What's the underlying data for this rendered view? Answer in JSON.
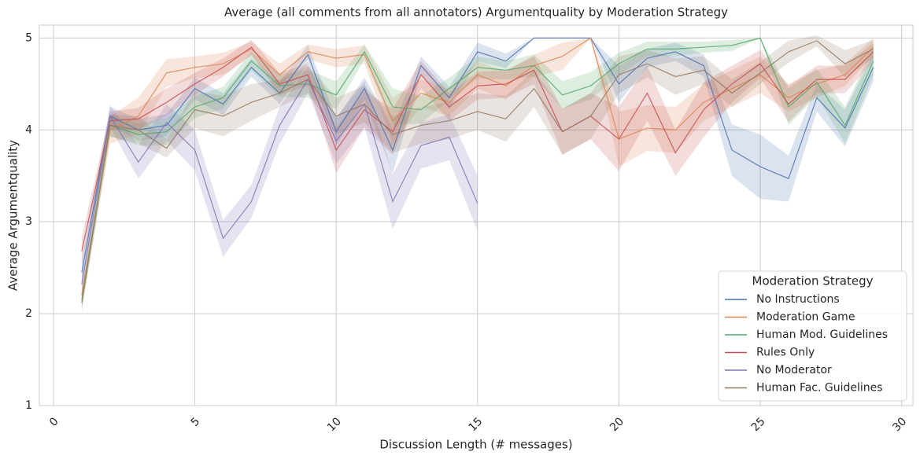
{
  "chart_data": {
    "type": "line",
    "title": "Average (all comments from all annotators) Argumentquality by Moderation Strategy",
    "x_label": "Discussion Length (# messages)",
    "y_label": "Average Argumentquality",
    "legend_title": "Moderation Strategy",
    "legend_position": "lower right",
    "grid": true,
    "x": [
      1,
      2,
      3,
      4,
      5,
      6,
      7,
      8,
      9,
      10,
      11,
      12,
      13,
      14,
      15,
      16,
      17,
      18,
      19,
      20,
      21,
      22,
      23,
      24,
      25,
      26,
      27,
      28,
      29
    ],
    "xlim": [
      -0.5,
      30.4
    ],
    "xticks": [
      0,
      5,
      10,
      15,
      20,
      25,
      30
    ],
    "ylim": [
      1,
      5.14
    ],
    "yticks": [
      1,
      2,
      3,
      4,
      5
    ],
    "series": [
      {
        "name": "No Instructions",
        "color": "#4c72b0",
        "values": [
          2.45,
          4.15,
          4.0,
          4.05,
          4.45,
          4.28,
          4.68,
          4.4,
          4.82,
          3.98,
          4.45,
          3.78,
          4.7,
          4.35,
          4.85,
          4.75,
          5.0,
          5.0,
          5.0,
          4.5,
          4.78,
          4.85,
          4.7,
          3.78,
          3.6,
          3.47,
          4.35,
          4.02,
          4.68
        ],
        "errors": [
          0.12,
          0.1,
          0.12,
          0.12,
          0.12,
          0.12,
          0.1,
          0.12,
          0.1,
          0.15,
          0.12,
          0.25,
          0.1,
          0.12,
          0.1,
          0.08,
          0.0,
          0.0,
          0.0,
          0.2,
          0.1,
          0.1,
          0.12,
          0.28,
          0.35,
          0.25,
          0.15,
          0.2,
          0.15
        ]
      },
      {
        "name": "Moderation Game",
        "color": "#dd8452",
        "values": [
          2.2,
          4.0,
          4.15,
          4.62,
          4.68,
          4.72,
          4.88,
          4.6,
          4.85,
          4.78,
          4.82,
          4.1,
          4.4,
          4.3,
          4.6,
          4.48,
          4.7,
          4.8,
          5.0,
          3.9,
          4.02,
          4.0,
          4.3,
          4.45,
          4.6,
          4.35,
          4.5,
          4.6,
          4.9
        ],
        "errors": [
          0.12,
          0.15,
          0.2,
          0.15,
          0.12,
          0.12,
          0.08,
          0.12,
          0.08,
          0.1,
          0.1,
          0.25,
          0.15,
          0.15,
          0.15,
          0.15,
          0.12,
          0.15,
          0.0,
          0.3,
          0.25,
          0.25,
          0.2,
          0.2,
          0.2,
          0.15,
          0.15,
          0.12,
          0.1
        ]
      },
      {
        "name": "Human Mod. Guidelines",
        "color": "#55a868",
        "values": [
          2.15,
          4.05,
          3.95,
          3.98,
          4.25,
          4.35,
          4.75,
          4.48,
          4.5,
          4.38,
          4.85,
          4.25,
          4.22,
          4.45,
          4.68,
          4.65,
          4.7,
          4.38,
          4.48,
          4.72,
          4.88,
          4.88,
          4.9,
          4.92,
          5.0,
          4.25,
          4.52,
          4.05,
          4.75
        ],
        "errors": [
          0.1,
          0.12,
          0.12,
          0.15,
          0.12,
          0.12,
          0.1,
          0.12,
          0.15,
          0.15,
          0.08,
          0.2,
          0.15,
          0.12,
          0.12,
          0.1,
          0.12,
          0.15,
          0.15,
          0.12,
          0.08,
          0.08,
          0.06,
          0.06,
          0.0,
          0.2,
          0.15,
          0.2,
          0.15
        ]
      },
      {
        "name": "Rules Only",
        "color": "#c44e52",
        "values": [
          2.68,
          4.1,
          4.12,
          4.3,
          4.5,
          4.68,
          4.9,
          4.5,
          4.6,
          3.78,
          4.22,
          3.98,
          4.6,
          4.25,
          4.48,
          4.5,
          4.65,
          3.98,
          4.15,
          3.9,
          4.4,
          3.75,
          4.22,
          4.5,
          4.72,
          4.28,
          4.55,
          4.55,
          4.85
        ],
        "errors": [
          0.15,
          0.1,
          0.12,
          0.15,
          0.12,
          0.1,
          0.08,
          0.12,
          0.12,
          0.25,
          0.2,
          0.25,
          0.15,
          0.15,
          0.15,
          0.15,
          0.15,
          0.25,
          0.25,
          0.35,
          0.3,
          0.25,
          0.3,
          0.2,
          0.15,
          0.2,
          0.15,
          0.15,
          0.1
        ]
      },
      {
        "name": "No Moderator",
        "color": "#8172b3",
        "values": [
          2.32,
          4.15,
          3.65,
          4.08,
          3.78,
          2.82,
          3.22,
          4.05,
          4.55,
          3.88,
          4.28,
          3.22,
          3.83,
          3.92,
          3.2,
          null,
          null,
          null,
          null,
          null,
          null,
          null,
          null,
          null,
          null,
          null,
          null,
          null,
          null
        ],
        "errors": [
          0.1,
          0.12,
          0.18,
          0.2,
          0.22,
          0.2,
          0.18,
          0.2,
          0.15,
          0.25,
          0.25,
          0.3,
          0.25,
          0.25,
          0.3,
          null,
          null,
          null,
          null,
          null,
          null,
          null,
          null,
          null,
          null,
          null,
          null,
          null,
          null
        ]
      },
      {
        "name": "Human Fac. Guidelines",
        "color": "#937860",
        "values": [
          2.12,
          4.05,
          4.0,
          3.8,
          4.22,
          4.15,
          4.3,
          4.4,
          4.55,
          4.15,
          4.28,
          3.95,
          4.05,
          4.1,
          4.2,
          4.12,
          4.45,
          3.98,
          4.15,
          4.6,
          4.72,
          4.58,
          4.65,
          4.4,
          4.62,
          4.85,
          4.97,
          4.72,
          4.88
        ],
        "errors": [
          0.1,
          0.12,
          0.15,
          0.1,
          0.2,
          0.22,
          0.2,
          0.15,
          0.15,
          0.2,
          0.2,
          0.2,
          0.2,
          0.2,
          0.2,
          0.25,
          0.2,
          0.25,
          0.25,
          0.2,
          0.15,
          0.2,
          0.15,
          0.15,
          0.12,
          0.12,
          0.06,
          0.15,
          0.1
        ]
      }
    ]
  }
}
